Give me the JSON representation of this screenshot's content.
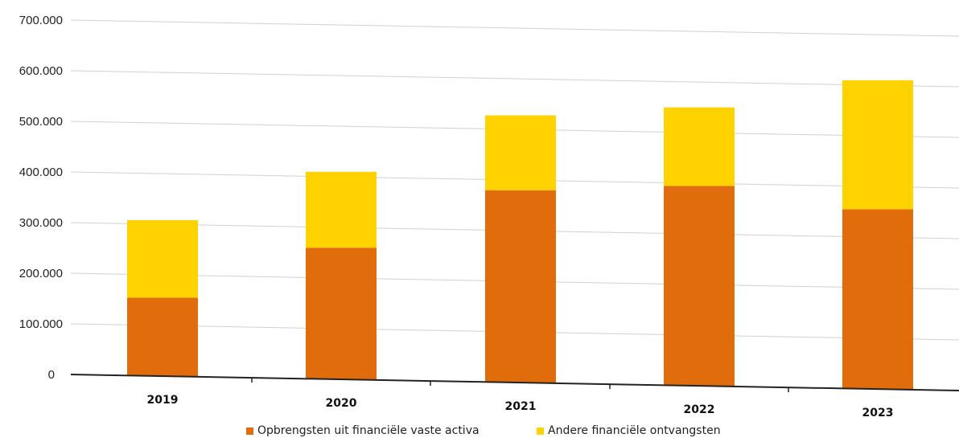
{
  "chart_data": {
    "type": "bar",
    "stacked": true,
    "categories": [
      "2019",
      "2020",
      "2021",
      "2022",
      "2023"
    ],
    "series": [
      {
        "name": "Opbrengsten uit financiële vaste activa",
        "color": "#E06C0C",
        "values": [
          155000,
          260000,
          380000,
          395000,
          355000
        ]
      },
      {
        "name": "Andere financiële ontvangsten",
        "color": "#FFD200",
        "values": [
          153000,
          150000,
          148000,
          155000,
          255000
        ]
      }
    ],
    "ylim": [
      0,
      700000
    ],
    "yticks": [
      "0",
      "100.000",
      "200.000",
      "300.000",
      "400.000",
      "500.000",
      "600.000",
      "700.000"
    ],
    "grid": true,
    "legend_position": "bottom"
  }
}
